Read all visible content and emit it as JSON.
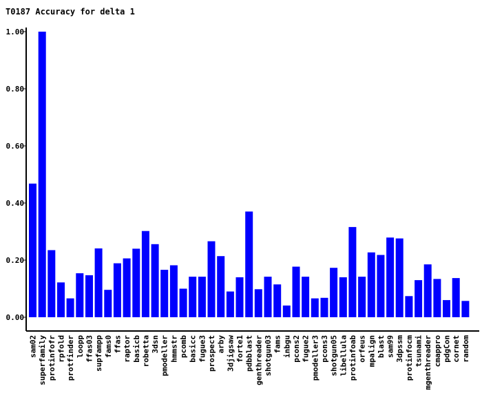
{
  "chart_data": {
    "type": "bar",
    "title": "T0187 Accuracy for delta 1",
    "xlabel": "",
    "ylabel": "",
    "ylim": [
      0,
      1.0
    ],
    "yticks": [
      "0.00",
      "0.20",
      "0.40",
      "0.60",
      "0.80",
      "1.00"
    ],
    "bar_color": "#0000ff",
    "categories": [
      "sam02",
      "superfamily",
      "protinfofr",
      "rpfold",
      "protfinder",
      "loopp",
      "ffas03",
      "supfampp",
      "fams0",
      "ffas",
      "raptor",
      "basicb",
      "robetta",
      "3dsn",
      "pmodeller",
      "hmmstr",
      "pcomb",
      "basicc",
      "fugue3",
      "prospect",
      "arby",
      "3djigsaw",
      "forte1",
      "pdbblast",
      "genthreader",
      "shotgun03",
      "fams",
      "inbgu",
      "pcons2",
      "fugue2",
      "pmodeller3",
      "pcons3",
      "shotgun05",
      "libellula",
      "protinfoab",
      "orfeus",
      "mpalign",
      "blast",
      "sam99",
      "3dpssm",
      "protinfocm",
      "tsunami",
      "mgenthreader",
      "cmappro",
      "pdgCon",
      "cornet",
      "random"
    ],
    "values": [
      0.468,
      1.0,
      0.235,
      0.122,
      0.066,
      0.154,
      0.147,
      0.241,
      0.096,
      0.189,
      0.206,
      0.24,
      0.302,
      0.256,
      0.166,
      0.182,
      0.1,
      0.142,
      0.142,
      0.266,
      0.214,
      0.09,
      0.14,
      0.37,
      0.098,
      0.142,
      0.115,
      0.041,
      0.177,
      0.142,
      0.066,
      0.068,
      0.173,
      0.14,
      0.316,
      0.142,
      0.227,
      0.218,
      0.279,
      0.276,
      0.074,
      0.13,
      0.185,
      0.134,
      0.06,
      0.137,
      0.057
    ]
  }
}
